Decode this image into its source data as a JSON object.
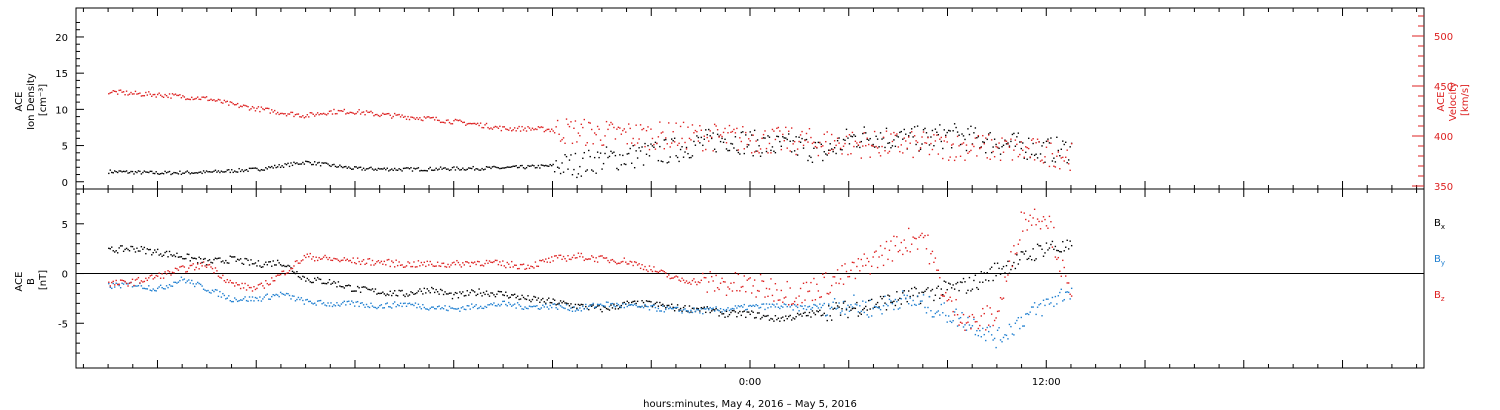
{
  "chart_data": [
    {
      "type": "scatter",
      "panel": "top",
      "left_axis": {
        "label_lines": [
          "ACE",
          "Ion Density",
          "[cm⁻³]"
        ],
        "ylim": [
          -1,
          24
        ],
        "ticks": [
          0,
          5,
          10,
          15,
          20
        ],
        "color": "#000000"
      },
      "right_axis": {
        "label_lines": [
          "ACE",
          "Velocity",
          "[km/s]"
        ],
        "ylim": [
          347,
          528
        ],
        "ticks": [
          350,
          400,
          450,
          500
        ],
        "color": "#dd2020"
      },
      "series": [
        {
          "name": "",
          "axis": "left",
          "color": "#000000",
          "x": [
            -26,
            -24,
            -22,
            -20,
            -18,
            -16,
            -14,
            -12,
            -10,
            -8.5,
            -7,
            -6,
            -5,
            -4,
            -3,
            -2,
            -1,
            0,
            1,
            2,
            3,
            4,
            5,
            6,
            7,
            8,
            9,
            10,
            11,
            12,
            13
          ],
          "y": [
            1.5,
            1.3,
            1.4,
            1.8,
            2.8,
            1.9,
            1.8,
            1.9,
            2.0,
            2.2,
            2.5,
            3.2,
            3.5,
            4.0,
            4.5,
            5.5,
            6.0,
            5.5,
            5.0,
            5.0,
            4.0,
            6.0,
            6.5,
            6.0,
            6.0,
            6.5,
            6.0,
            5.5,
            5.0,
            4.5,
            4.5
          ]
        },
        {
          "name": "",
          "axis": "right",
          "color": "#dd2020",
          "x": [
            -26,
            -25,
            -24,
            -23,
            -22,
            -21,
            -20,
            -19,
            -18,
            -17,
            -16,
            -15,
            -14,
            -13,
            -12,
            -11,
            -10,
            -9,
            -8,
            -7,
            -6,
            -5,
            -4,
            -3,
            -2,
            -1,
            0,
            1,
            2,
            3,
            4,
            5,
            6,
            7,
            8,
            9,
            10,
            11,
            12,
            13
          ],
          "y": [
            445,
            443,
            442,
            440,
            438,
            432,
            428,
            424,
            421,
            425,
            425,
            422,
            420,
            418,
            415,
            412,
            408,
            408,
            407,
            405,
            403,
            402,
            401,
            401,
            400,
            399,
            397,
            396,
            395,
            394,
            393,
            392,
            392,
            391,
            390,
            390,
            388,
            386,
            384,
            380
          ]
        }
      ]
    },
    {
      "type": "scatter",
      "panel": "bottom",
      "ylabel_lines": [
        "ACE",
        "B",
        "[nT]"
      ],
      "ylim": [
        -9.5,
        8.5
      ],
      "ticks": [
        -5,
        0,
        5
      ],
      "zero_line": true,
      "legend_placement": "right",
      "series": [
        {
          "name": "B",
          "sub": "x",
          "color": "#000000",
          "x": [
            -26,
            -25,
            -24,
            -23,
            -22,
            -21,
            -20,
            -19,
            -18,
            -17,
            -16,
            -15,
            -14,
            -13,
            -12,
            -11,
            -10,
            -9,
            -8,
            -7,
            -6,
            -5,
            -4,
            -3,
            -2,
            -1,
            0,
            1,
            2,
            3,
            4,
            5,
            6,
            7,
            8,
            9,
            10,
            11,
            12,
            13
          ],
          "y": [
            2.4,
            2.6,
            2.2,
            1.8,
            1.2,
            1.5,
            1.0,
            1.2,
            -0.5,
            -0.8,
            -1.5,
            -1.8,
            -2.0,
            -1.5,
            -2.2,
            -1.8,
            -2.0,
            -2.5,
            -2.8,
            -3.2,
            -3.5,
            -3.0,
            -3.0,
            -3.4,
            -3.5,
            -4.0,
            -4.0,
            -4.5,
            -4.2,
            -3.8,
            -3.5,
            -3.0,
            -2.5,
            -2.0,
            -1.5,
            -1.0,
            0.5,
            1.5,
            2.8,
            2.5
          ]
        },
        {
          "name": "B",
          "sub": "y",
          "color": "#1f7fd0",
          "x": [
            -26,
            -25,
            -24,
            -23,
            -22,
            -21,
            -20,
            -19,
            -18,
            -17,
            -16,
            -15,
            -14,
            -13,
            -12,
            -11,
            -10,
            -9,
            -8,
            -7,
            -6,
            -5,
            -4,
            -3,
            -2,
            -1,
            0,
            1,
            2,
            3,
            4,
            5,
            6,
            7,
            8,
            9,
            10,
            11,
            12,
            13
          ],
          "y": [
            -1.2,
            -1.0,
            -1.5,
            -0.5,
            -1.5,
            -2.5,
            -2.5,
            -2.0,
            -2.8,
            -3.0,
            -3.0,
            -3.2,
            -3.0,
            -3.3,
            -3.5,
            -3.2,
            -3.0,
            -3.3,
            -3.2,
            -3.5,
            -3.0,
            -3.2,
            -3.4,
            -3.6,
            -3.7,
            -3.5,
            -3.3,
            -3.2,
            -3.4,
            -3.2,
            -3.0,
            -3.5,
            -2.5,
            -3.0,
            -4.0,
            -5.0,
            -6.5,
            -4.5,
            -3.0,
            -1.5
          ]
        },
        {
          "name": "B",
          "sub": "z",
          "color": "#dd2020",
          "x": [
            -26,
            -25,
            -24,
            -23,
            -22,
            -21,
            -20,
            -19,
            -18,
            -17,
            -16,
            -15,
            -14,
            -13,
            -12,
            -11,
            -10,
            -9,
            -8,
            -7,
            -6,
            -5,
            -4,
            -3,
            -2,
            -1,
            0,
            1,
            2,
            3,
            4,
            5,
            6,
            7,
            8,
            9,
            10,
            11,
            12,
            13
          ],
          "y": [
            -1.0,
            -0.8,
            -0.2,
            0.5,
            1.0,
            -1.0,
            -1.5,
            0.0,
            1.8,
            1.5,
            1.3,
            1.2,
            1.0,
            1.0,
            1.0,
            1.2,
            1.0,
            0.8,
            1.5,
            1.8,
            1.5,
            1.3,
            0.5,
            -0.5,
            -0.8,
            -1.0,
            -1.2,
            -1.5,
            -2.0,
            -1.0,
            0.0,
            1.5,
            3.0,
            4.0,
            -3.0,
            -5.0,
            -4.0,
            5.5,
            6.0,
            -3.0
          ]
        }
      ]
    }
  ],
  "x_axis": {
    "label": "hours:minutes,  May  4, 2016 – May  5, 2016",
    "xlim": [
      -27.3,
      27.3
    ],
    "major_ticks": [
      -24,
      -20,
      -16,
      -12,
      -8,
      -4,
      0,
      4,
      8,
      12,
      16,
      20,
      24
    ],
    "tick_labels": [
      {
        "x": 0,
        "text": "0:00"
      },
      {
        "x": 12,
        "text": "12:00"
      }
    ]
  }
}
